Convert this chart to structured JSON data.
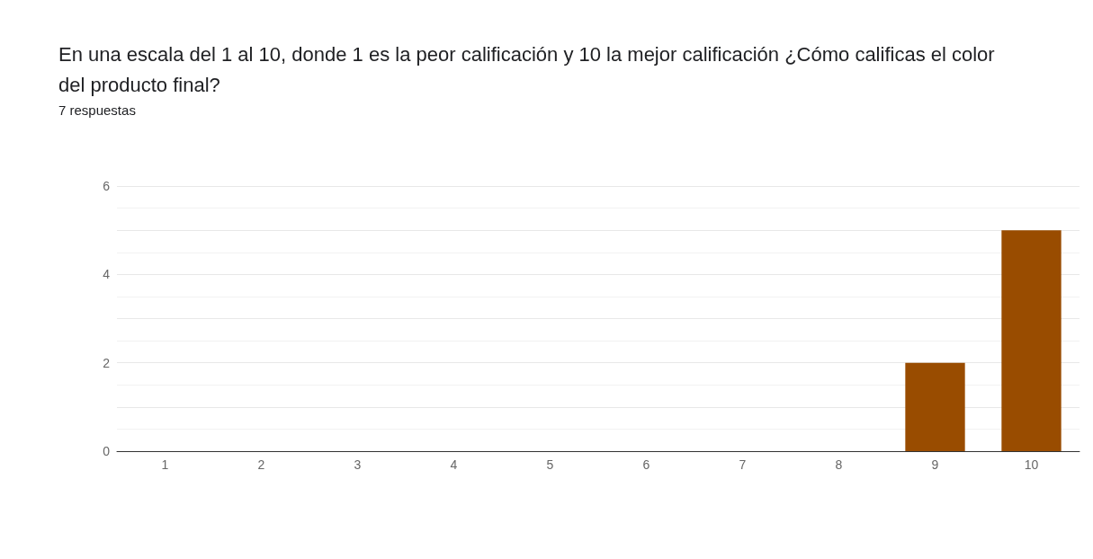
{
  "chart_data": {
    "type": "bar",
    "title": "En una escala del 1 al 10, donde 1 es la peor calificación y 10 la mejor calificación ¿Cómo calificas el color del producto final?",
    "subtitle": "7 respuestas",
    "categories": [
      "1",
      "2",
      "3",
      "4",
      "5",
      "6",
      "7",
      "8",
      "9",
      "10"
    ],
    "values": [
      0,
      0,
      0,
      0,
      0,
      0,
      0,
      0,
      2,
      5
    ],
    "color": "#994c00",
    "ylim": [
      0,
      6
    ],
    "yticks": [
      0,
      2,
      4,
      6
    ],
    "grid": "y"
  }
}
